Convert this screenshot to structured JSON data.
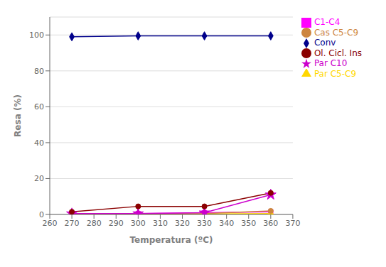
{
  "chart_data": {
    "type": "line",
    "x": [
      270,
      300,
      330,
      360
    ],
    "series": [
      {
        "name": "Conv",
        "color": "#00008B",
        "marker": "diamond",
        "line_style": "solid",
        "values": [
          99,
          99.5,
          99.5,
          99.5
        ]
      },
      {
        "name": "C1-C4",
        "color": "#FF00FF",
        "marker": "square",
        "line_style": "solid",
        "values": [
          0.5,
          0.5,
          1.0,
          1.5
        ]
      },
      {
        "name": "Par C5-C9",
        "color": "#FFD700",
        "marker": "triangle",
        "line_style": "solid",
        "values": [
          0.2,
          0.2,
          0.3,
          0.5
        ]
      },
      {
        "name": "Cas C5-C9",
        "color": "#CD853F",
        "marker": "circle",
        "line_style": "solid",
        "values": [
          0.3,
          0.3,
          0.5,
          2.0
        ]
      },
      {
        "name": "Par C10",
        "color": "#CC00CC",
        "marker": "star",
        "line_style": "solid",
        "values": [
          0.5,
          0.5,
          1.0,
          11.0
        ]
      },
      {
        "name": "Ol. Cicl. Ins",
        "color": "#8B0000",
        "marker": "circle",
        "line_style": "solid",
        "values": [
          1.5,
          4.5,
          4.5,
          12.0
        ]
      }
    ],
    "x_label": "Temperatura (ºC)",
    "y_label": "Resa (%)",
    "xlim": [
      260,
      370
    ],
    "ylim": [
      0,
      110
    ],
    "xticks": [
      260,
      270,
      280,
      290,
      300,
      310,
      320,
      330,
      340,
      350,
      360,
      370
    ],
    "yticks": [
      0,
      20,
      40,
      60,
      80,
      100
    ],
    "grid": true,
    "legend": "right"
  }
}
